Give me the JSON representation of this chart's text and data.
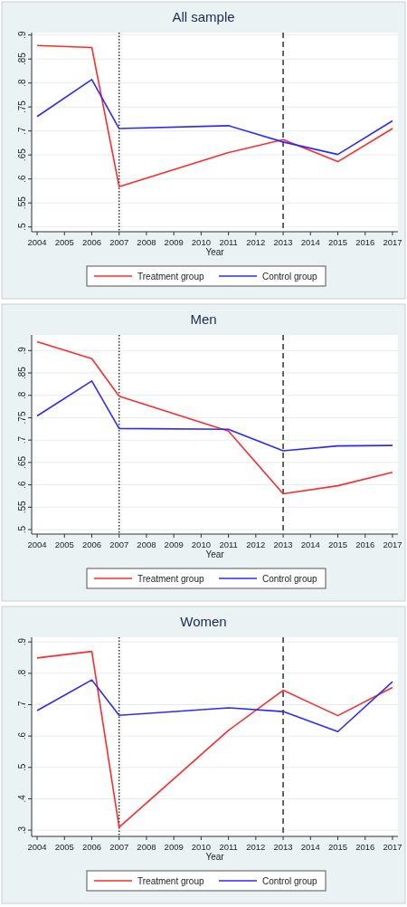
{
  "chart_data": [
    {
      "type": "line",
      "title": "All sample",
      "xlabel": "Year",
      "x": [
        2004,
        2006,
        2007,
        2011,
        2013,
        2015,
        2017
      ],
      "xlim": [
        2003.8,
        2017.2
      ],
      "xticks": [
        2004,
        2005,
        2006,
        2007,
        2008,
        2009,
        2010,
        2011,
        2012,
        2013,
        2014,
        2015,
        2016,
        2017
      ],
      "ylim": [
        0.49,
        0.905
      ],
      "yticks": [
        {
          "value": 0.5,
          "label": ".5"
        },
        {
          "value": 0.55,
          "label": ".55"
        },
        {
          "value": 0.6,
          "label": ".6"
        },
        {
          "value": 0.65,
          "label": ".65"
        },
        {
          "value": 0.7,
          "label": ".7"
        },
        {
          "value": 0.75,
          "label": ".75"
        },
        {
          "value": 0.8,
          "label": ".8"
        },
        {
          "value": 0.85,
          "label": ".85"
        },
        {
          "value": 0.9,
          "label": ".9"
        }
      ],
      "grid": "y",
      "legend": "bottom",
      "line_style": "solid",
      "series": [
        {
          "name": "Treatment group",
          "color": "#ff2a2a",
          "values": [
            0.878,
            0.874,
            0.584,
            0.655,
            0.682,
            0.636,
            0.705
          ]
        },
        {
          "name": "Control group",
          "color": "#2a2aff",
          "values": [
            0.73,
            0.807,
            0.705,
            0.711,
            0.677,
            0.651,
            0.721
          ]
        }
      ],
      "ref_lines": [
        {
          "axis": "x",
          "value": 2007,
          "line_style": "dotted",
          "color": "#222222"
        },
        {
          "axis": "x",
          "value": 2013,
          "line_style": "dashed",
          "color": "#222222"
        }
      ]
    },
    {
      "type": "line",
      "title": "Men",
      "xlabel": "Year",
      "x": [
        2004,
        2006,
        2007,
        2011,
        2013,
        2015,
        2017
      ],
      "xlim": [
        2003.8,
        2017.2
      ],
      "xticks": [
        2004,
        2005,
        2006,
        2007,
        2008,
        2009,
        2010,
        2011,
        2012,
        2013,
        2014,
        2015,
        2016,
        2017
      ],
      "ylim": [
        0.49,
        0.935
      ],
      "yticks": [
        {
          "value": 0.5,
          "label": ".5"
        },
        {
          "value": 0.55,
          "label": ".55"
        },
        {
          "value": 0.6,
          "label": ".6"
        },
        {
          "value": 0.65,
          "label": ".65"
        },
        {
          "value": 0.7,
          "label": ".7"
        },
        {
          "value": 0.75,
          "label": ".75"
        },
        {
          "value": 0.8,
          "label": ".8"
        },
        {
          "value": 0.85,
          "label": ".85"
        },
        {
          "value": 0.9,
          "label": ".9"
        }
      ],
      "grid": "y",
      "legend": "bottom",
      "line_style": "solid",
      "series": [
        {
          "name": "Treatment group",
          "color": "#ff2a2a",
          "values": [
            0.92,
            0.882,
            0.798,
            0.72,
            0.58,
            0.598,
            0.628
          ]
        },
        {
          "name": "Control group",
          "color": "#2a2aff",
          "values": [
            0.754,
            0.832,
            0.726,
            0.724,
            0.676,
            0.687,
            0.688
          ]
        }
      ],
      "ref_lines": [
        {
          "axis": "x",
          "value": 2007,
          "line_style": "dotted",
          "color": "#222222"
        },
        {
          "axis": "x",
          "value": 2013,
          "line_style": "dashed",
          "color": "#222222"
        }
      ]
    },
    {
      "type": "line",
      "title": "Women",
      "xlabel": "Year",
      "x": [
        2004,
        2006,
        2007,
        2011,
        2013,
        2015,
        2017
      ],
      "xlim": [
        2003.8,
        2017.2
      ],
      "xticks": [
        2004,
        2005,
        2006,
        2007,
        2008,
        2009,
        2010,
        2011,
        2012,
        2013,
        2014,
        2015,
        2016,
        2017
      ],
      "ylim": [
        0.28,
        0.915
      ],
      "yticks": [
        {
          "value": 0.3,
          "label": ".3"
        },
        {
          "value": 0.4,
          "label": ".4"
        },
        {
          "value": 0.5,
          "label": ".5"
        },
        {
          "value": 0.6,
          "label": ".6"
        },
        {
          "value": 0.7,
          "label": ".7"
        },
        {
          "value": 0.8,
          "label": ".8"
        },
        {
          "value": 0.9,
          "label": ".9"
        }
      ],
      "grid": "y",
      "legend": "bottom",
      "line_style": "solid",
      "series": [
        {
          "name": "Treatment group",
          "color": "#ff2a2a",
          "values": [
            0.849,
            0.87,
            0.309,
            0.618,
            0.746,
            0.665,
            0.755
          ]
        },
        {
          "name": "Control group",
          "color": "#2a2aff",
          "values": [
            0.681,
            0.779,
            0.666,
            0.69,
            0.678,
            0.614,
            0.773
          ]
        }
      ],
      "ref_lines": [
        {
          "axis": "x",
          "value": 2007,
          "line_style": "dotted",
          "color": "#222222"
        },
        {
          "axis": "x",
          "value": 2013,
          "line_style": "dashed",
          "color": "#222222"
        }
      ]
    }
  ]
}
